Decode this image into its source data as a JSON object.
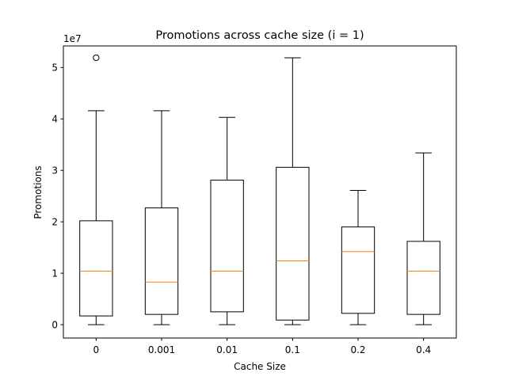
{
  "chart_data": {
    "type": "box",
    "title": "Promotions across cache size (i = 1)",
    "xlabel": "Cache Size",
    "ylabel": "Promotions",
    "scale_label": "1e7",
    "categories": [
      "0",
      "0.001",
      "0.01",
      "0.1",
      "0.2",
      "0.4"
    ],
    "ylim": [
      -2600000,
      54200000
    ],
    "yticks": [
      0,
      10000000,
      20000000,
      30000000,
      40000000,
      50000000
    ],
    "yticklabels": [
      "0",
      "1",
      "2",
      "3",
      "4",
      "5"
    ],
    "boxes": [
      {
        "whisker_low": 0,
        "q1": 1700000,
        "median": 10400000,
        "q3": 20200000,
        "whisker_high": 41600000,
        "outliers": [
          51900000
        ]
      },
      {
        "whisker_low": 0,
        "q1": 2000000,
        "median": 8300000,
        "q3": 22700000,
        "whisker_high": 41600000,
        "outliers": []
      },
      {
        "whisker_low": 0,
        "q1": 2500000,
        "median": 10400000,
        "q3": 28100000,
        "whisker_high": 40300000,
        "outliers": []
      },
      {
        "whisker_low": 0,
        "q1": 900000,
        "median": 12400000,
        "q3": 30600000,
        "whisker_high": 51900000,
        "outliers": []
      },
      {
        "whisker_low": 0,
        "q1": 2200000,
        "median": 14200000,
        "q3": 19000000,
        "whisker_high": 26100000,
        "outliers": []
      },
      {
        "whisker_low": 0,
        "q1": 2000000,
        "median": 10400000,
        "q3": 16200000,
        "whisker_high": 33400000,
        "outliers": []
      }
    ],
    "grid": false,
    "colors": {
      "box": "#000000",
      "median": "#ff7f0e"
    }
  }
}
